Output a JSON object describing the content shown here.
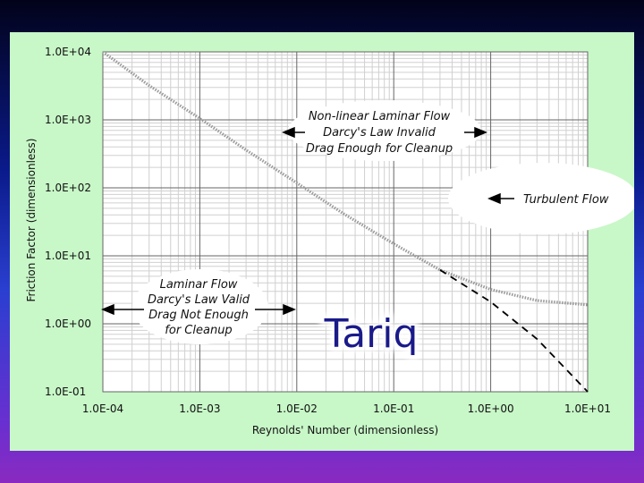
{
  "chart_data": {
    "type": "line",
    "title": "",
    "xlabel": "Reynolds' Number (dimensionless)",
    "ylabel": "Friction Factor (dimensionless)",
    "x_scale": "log",
    "y_scale": "log",
    "xlim": [
      0.0001,
      10
    ],
    "ylim": [
      0.1,
      10000
    ],
    "x_ticks": [
      "1.0E-04",
      "1.0E-03",
      "1.0E-02",
      "1.0E-01",
      "1.0E+00",
      "1.0E+01"
    ],
    "y_ticks": [
      "1.0E-01",
      "1.0E+00",
      "1.0E+01",
      "1.0E+02",
      "1.0E+03",
      "1.0E+04"
    ],
    "grid": true,
    "series": [
      {
        "style": "dotted-grey",
        "x": [
          0.0001,
          0.0003,
          0.001,
          0.003,
          0.01,
          0.03,
          0.1,
          0.3,
          1,
          3,
          10
        ],
        "y": [
          10000,
          3200,
          1050,
          360,
          118,
          42,
          15,
          6.2,
          3.2,
          2.2,
          1.9
        ]
      },
      {
        "style": "dashed-black",
        "x": [
          0.3,
          1,
          3,
          10
        ],
        "y": [
          6.2,
          2.1,
          0.6,
          0.1
        ]
      }
    ],
    "annotations": {
      "nonlinear": [
        "Non-linear Laminar Flow",
        "Darcy's Law Invalid",
        "Drag  Enough for Cleanup"
      ],
      "turbulent": [
        "Turbulent Flow"
      ],
      "laminar": [
        "Laminar Flow",
        "Darcy's Law Valid",
        "Drag Not Enough",
        "for Cleanup"
      ]
    }
  },
  "watermark": "Tariq"
}
